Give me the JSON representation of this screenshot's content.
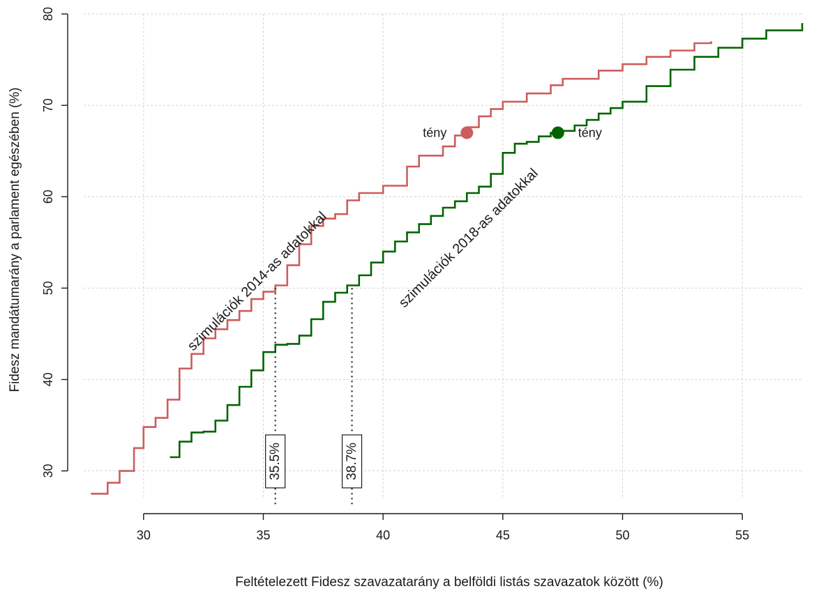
{
  "chart_data": {
    "type": "line",
    "step": true,
    "xlabel": "Feltételezett Fidesz szavazatarány a belföldi listás szavazatok között (%)",
    "ylabel": "Fidesz mandátumarány a parlament egészében (%)",
    "xlim": [
      27.5,
      57.5
    ],
    "ylim": [
      27,
      80
    ],
    "xticks": [
      30,
      35,
      40,
      45,
      50,
      55
    ],
    "yticks": [
      30,
      40,
      50,
      60,
      70,
      80
    ],
    "grid": true,
    "series": [
      {
        "label": "szimulációk 2014-as adatokkal",
        "color": "#CD5C5C",
        "x": [
          27.8,
          28.5,
          29.0,
          29.6,
          30.0,
          30.5,
          31.0,
          31.5,
          32.0,
          32.5,
          33.0,
          33.5,
          34.0,
          34.5,
          35.0,
          35.5,
          36.0,
          36.5,
          37.0,
          37.5,
          38.0,
          38.5,
          39.0,
          40.0,
          41.0,
          41.5,
          42.5,
          43.0,
          43.5,
          44.0,
          44.5,
          45.0,
          46.0,
          47.0,
          47.5,
          49.0,
          50.0,
          51.0,
          52.0,
          53.0,
          53.7
        ],
        "y": [
          27.5,
          28.7,
          30.0,
          32.5,
          34.8,
          35.8,
          37.8,
          41.2,
          42.8,
          44.5,
          45.5,
          46.5,
          47.5,
          48.8,
          49.6,
          50.3,
          52.5,
          54.8,
          56.8,
          57.6,
          58.1,
          59.6,
          60.4,
          61.2,
          63.3,
          64.5,
          65.5,
          66.7,
          67.6,
          68.8,
          69.6,
          70.4,
          71.3,
          72.2,
          72.9,
          73.8,
          74.5,
          75.3,
          76.0,
          76.8,
          77.0
        ]
      },
      {
        "label": "szimulációk 2018-as adatokkal",
        "color": "#006400",
        "x": [
          31.1,
          31.5,
          32.0,
          32.5,
          33.0,
          33.5,
          34.0,
          34.5,
          35.0,
          35.5,
          36.0,
          36.5,
          37.0,
          37.5,
          38.0,
          38.5,
          39.0,
          39.5,
          40.0,
          40.5,
          41.0,
          41.5,
          42.0,
          42.5,
          43.0,
          43.5,
          44.0,
          44.5,
          45.0,
          45.5,
          46.0,
          46.5,
          47.0,
          47.5,
          48.0,
          48.5,
          49.0,
          49.5,
          50.0,
          51.0,
          52.0,
          53.0,
          54.0,
          55.0,
          56.0,
          57.5
        ],
        "y": [
          31.5,
          33.2,
          34.2,
          34.3,
          35.5,
          37.2,
          39.2,
          41.0,
          43.0,
          43.8,
          43.9,
          44.8,
          46.6,
          48.5,
          49.5,
          50.3,
          51.4,
          52.8,
          54.0,
          55.1,
          56.1,
          57.0,
          57.9,
          58.8,
          59.5,
          60.4,
          61.1,
          62.5,
          64.8,
          65.8,
          66.0,
          66.6,
          67.0,
          67.2,
          67.8,
          68.4,
          69.1,
          69.7,
          70.4,
          72.1,
          73.9,
          75.3,
          76.3,
          77.3,
          78.2,
          79.0
        ]
      }
    ],
    "points": [
      {
        "label": "tény",
        "x": 43.5,
        "y": 67.0,
        "color": "#CD5C5C",
        "label_side": "left"
      },
      {
        "label": "tény",
        "x": 47.3,
        "y": 67.0,
        "color": "#006400",
        "label_side": "right"
      }
    ],
    "markers": [
      {
        "label": "35.5%",
        "x": 35.5,
        "y_top": 50.0
      },
      {
        "label": "38.7%",
        "x": 38.7,
        "y_top": 50.0
      }
    ]
  }
}
